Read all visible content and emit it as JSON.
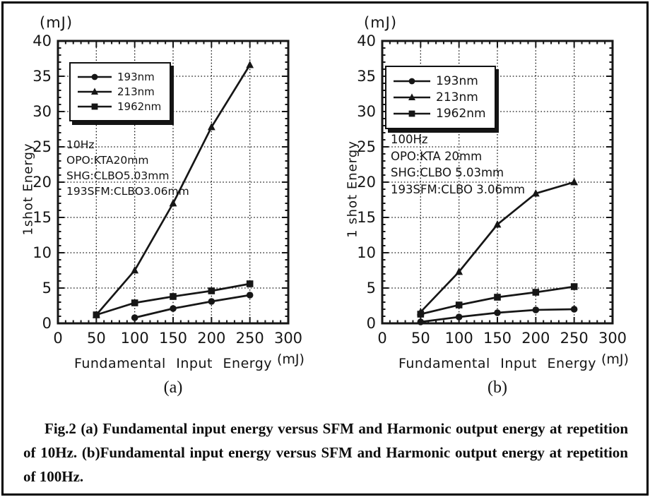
{
  "page": {
    "caption": "Fig.2 (a) Fundamental input energy versus SFM and Harmonic output energy at repetition of 10Hz. (b)Fundamental input energy versus SFM and Harmonic output energy at repetition of 100Hz."
  },
  "colors": {
    "ink": "#161616",
    "paper": "#ffffff"
  },
  "chart_data": [
    {
      "id": "a",
      "type": "line",
      "tag": "(a)",
      "y_unit": "(mJ)",
      "x_unit": "(mJ)",
      "ylabel": "1shot  Energy",
      "xlabel": "Fundamental Input Energy",
      "xlim": [
        0,
        300
      ],
      "ylim": [
        0,
        40
      ],
      "xticks": [
        0,
        50,
        100,
        150,
        200,
        250,
        300
      ],
      "yticks": [
        0,
        5,
        10,
        15,
        20,
        25,
        30,
        35,
        40
      ],
      "x_minor_step": 10,
      "y_minor_step": 1,
      "grid": true,
      "legend_position": "top-left",
      "annotation": [
        "10Hz",
        "OPO:KTA20mm",
        "SHG:CLBO5.03mm",
        "193SFM:CLBO3.06mm"
      ],
      "series": [
        {
          "name": "193nm",
          "marker": "circle",
          "x": [
            100,
            150,
            200,
            250
          ],
          "y": [
            0.8,
            2.1,
            3.1,
            4.0
          ]
        },
        {
          "name": "213nm",
          "marker": "triangle",
          "x": [
            50,
            100,
            150,
            200,
            250
          ],
          "y": [
            1.2,
            7.5,
            17.0,
            27.8,
            36.6
          ]
        },
        {
          "name": "1962nm",
          "marker": "square",
          "x": [
            50,
            100,
            150,
            200,
            250
          ],
          "y": [
            1.2,
            2.9,
            3.8,
            4.6,
            5.6
          ]
        }
      ]
    },
    {
      "id": "b",
      "type": "line",
      "tag": "(b)",
      "y_unit": "(mJ)",
      "x_unit": "(mJ)",
      "ylabel": "1 shot Energy",
      "xlabel": "Fundamental Input Energy",
      "xlim": [
        0,
        300
      ],
      "ylim": [
        0,
        40
      ],
      "xticks": [
        0,
        50,
        100,
        150,
        200,
        250,
        300
      ],
      "yticks": [
        0,
        5,
        10,
        15,
        20,
        25,
        30,
        35,
        40
      ],
      "x_minor_step": 10,
      "y_minor_step": 1,
      "grid": true,
      "legend_position": "top-left",
      "annotation": [
        "100Hz",
        "OPO:KTA 20mm",
        "SHG:CLBO 5.03mm",
        "193SFM:CLBO 3.06mm"
      ],
      "series": [
        {
          "name": "193nm",
          "marker": "circle",
          "x": [
            50,
            100,
            150,
            200,
            250
          ],
          "y": [
            0.2,
            0.9,
            1.5,
            1.9,
            2.0
          ]
        },
        {
          "name": "213nm",
          "marker": "triangle",
          "x": [
            50,
            100,
            150,
            200,
            250
          ],
          "y": [
            1.6,
            7.3,
            14.0,
            18.4,
            20.0
          ]
        },
        {
          "name": "1962nm",
          "marker": "square",
          "x": [
            50,
            100,
            150,
            200,
            250
          ],
          "y": [
            1.3,
            2.6,
            3.7,
            4.4,
            5.2
          ]
        }
      ]
    }
  ]
}
